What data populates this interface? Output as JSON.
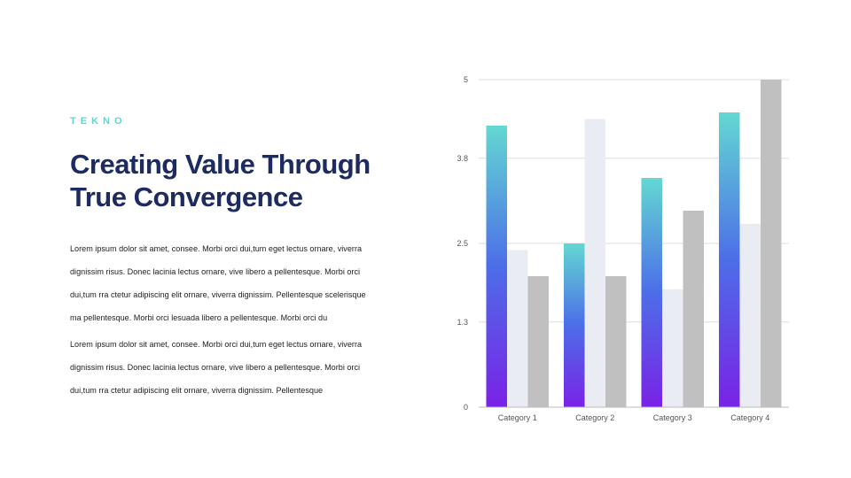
{
  "brand": "TEKNO",
  "headline": {
    "line1": "Creating Value Through",
    "line2": "True Convergence"
  },
  "paragraphs": [
    {
      "lines": [
        "Lorem ipsum dolor sit amet, consee. Morbi orci dui,tum eget lectus ornare, viverra",
        "dignissim risus. Donec lacinia  lectus ornare, vive libero a pellentesque. Morbi orci",
        "dui,tum rra ctetur adipiscing elit ornare, viverra dignissim. Pellentesque scelerisque",
        "ma pellentesque. Morbi orci lesuada libero a pellentesque. Morbi orci du"
      ]
    },
    {
      "lines": [
        "Lorem ipsum dolor sit amet, consee. Morbi orci dui,tum eget lectus ornare, viverra",
        "dignissim risus. Donec lacinia  lectus ornare, vive libero a pellentesque. Morbi orci",
        "dui,tum rra ctetur adipiscing elit ornare, viverra dignissim. Pellentesque"
      ]
    }
  ],
  "chart_data": {
    "type": "bar",
    "categories": [
      "Category 1",
      "Category 2",
      "Category 3",
      "Category 4"
    ],
    "series": [
      {
        "values": [
          4.3,
          2.5,
          3.5,
          4.5
        ],
        "fill": "gradient",
        "colors": [
          "#63d8d2",
          "#4c6ee8",
          "#7a22e6"
        ]
      },
      {
        "values": [
          2.4,
          4.4,
          1.8,
          2.8
        ],
        "color": "#e9edf3"
      },
      {
        "values": [
          2.0,
          2.0,
          3.0,
          5.0
        ],
        "color": "#c0c0c0"
      }
    ],
    "y_ticks": [
      "0",
      "1.3",
      "2.5",
      "3.8",
      "5"
    ],
    "ylim": [
      0,
      5
    ],
    "grid": true,
    "gridline_color": "#dddddd",
    "legend": "none"
  }
}
